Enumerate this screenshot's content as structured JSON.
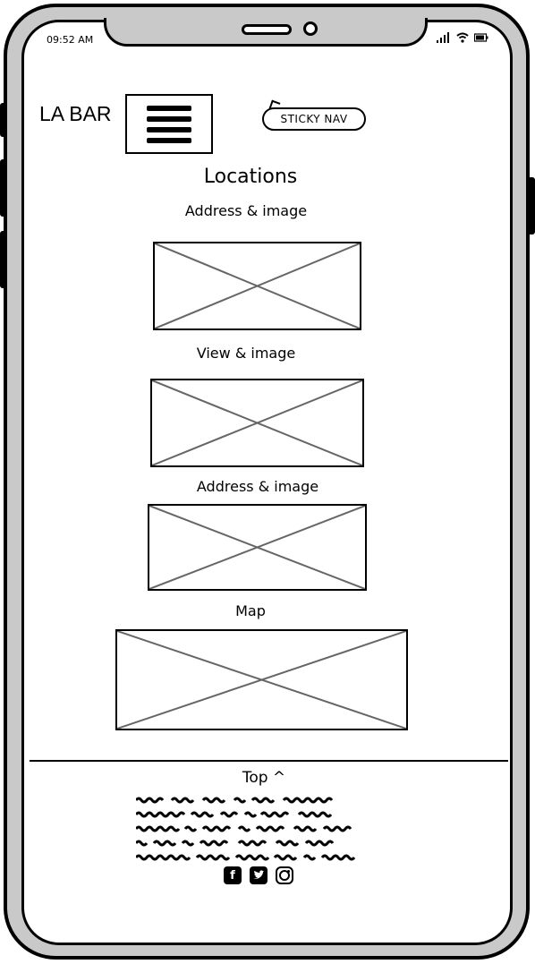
{
  "status_bar": {
    "time": "09:52 AM"
  },
  "header": {
    "logo": "LA BAR",
    "menu_icon": "hamburger-menu-icon",
    "annotation": "STICKY NAV"
  },
  "main": {
    "title": "Locations",
    "sections": [
      {
        "label": "Address & image",
        "image_icon": "image-placeholder-icon"
      },
      {
        "label": "View & image",
        "image_icon": "image-placeholder-icon"
      },
      {
        "label": "Address & image",
        "image_icon": "image-placeholder-icon"
      },
      {
        "label": "Map",
        "image_icon": "image-placeholder-icon"
      }
    ]
  },
  "footer": {
    "top_link": "Top ^",
    "social": [
      "facebook-icon",
      "twitter-icon",
      "instagram-icon"
    ]
  },
  "colors": {
    "ink": "#000000",
    "shell": "#c9c9c9",
    "placeholder_line": "#666666"
  }
}
